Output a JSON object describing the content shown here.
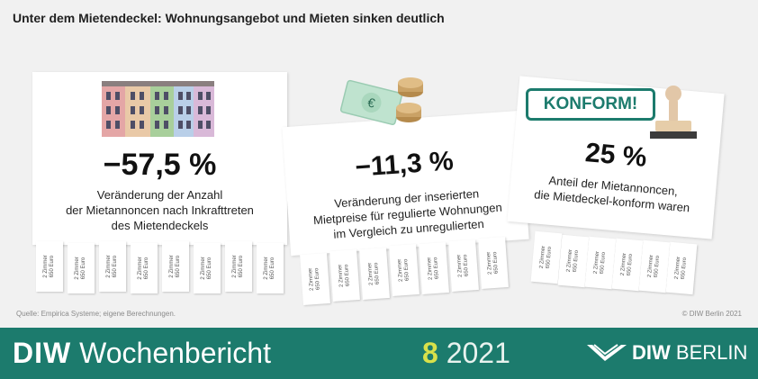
{
  "title": "Unter dem Mietendeckel: Wohnungsangebot und Mieten sinken deutlich",
  "tab_text": "2 Zimmer\n650 Euro",
  "cards": [
    {
      "value": "−57,5 %",
      "lines": [
        "Veränderung der Anzahl",
        "der Mietannoncen nach Inkrafttreten",
        "des Mietendeckels"
      ]
    },
    {
      "value": "−11,3 %",
      "lines": [
        "Veränderung der inserierten",
        "Mietpreise für regulierte Wohnungen",
        "im Vergleich zu unregulierten"
      ]
    },
    {
      "value": "25 %",
      "lines": [
        "Anteil der Mietannoncen,",
        "die Mietdeckel-konform waren"
      ]
    }
  ],
  "stamp_text": "KONFORM!",
  "source": "Quelle: Empirica Systeme; eigene Berechnungen.",
  "copyright": "© DIW Berlin 2021",
  "footer": {
    "brand_bold": "DIW",
    "brand_rest": "Wochenbericht",
    "issue_number": "8",
    "issue_year": "2021",
    "logo_left": "DIW",
    "logo_right": "BERLIN"
  },
  "colors": {
    "footer": "#1c7b6d",
    "issue_number": "#d8e14a",
    "stamp": "#1c7b6d"
  }
}
